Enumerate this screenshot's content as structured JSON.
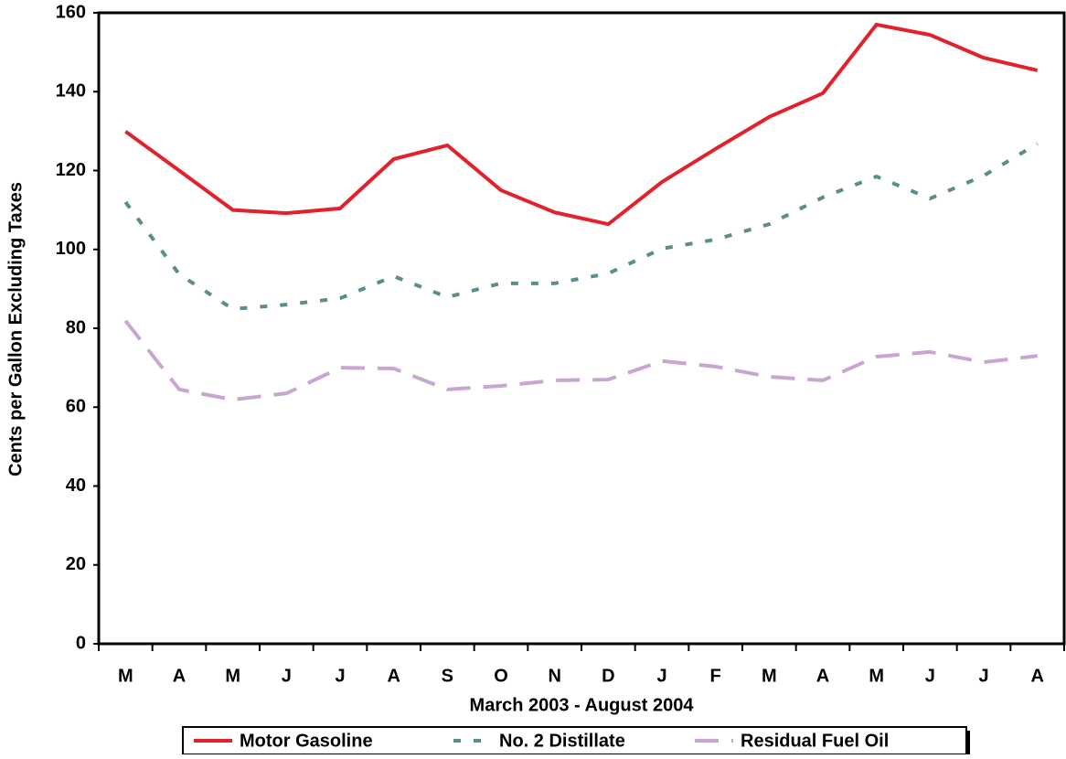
{
  "chart_data": {
    "type": "line",
    "y_label": "Cents per Gallon Excluding Taxes",
    "x_label": "March 2003 - August 2004",
    "categories": [
      "M",
      "A",
      "M",
      "J",
      "J",
      "A",
      "S",
      "O",
      "N",
      "D",
      "J",
      "F",
      "M",
      "A",
      "M",
      "J",
      "J",
      "A"
    ],
    "ylim": [
      0,
      160
    ],
    "yticks": [
      0,
      20,
      40,
      60,
      80,
      100,
      120,
      140,
      160
    ],
    "series": [
      {
        "name": "Motor Gasoline",
        "color": "#e3212b",
        "style": "solid",
        "values": [
          129.9,
          120,
          110,
          109.2,
          110.4,
          122.9,
          126.4,
          115,
          109.4,
          106.4,
          117.1,
          125.5,
          133.6,
          139.6,
          157,
          154.4,
          148.6,
          145.4
        ]
      },
      {
        "name": "No. 2 Distillate",
        "color": "#5a8e8c",
        "style": "dotted",
        "values": [
          112,
          93.7,
          84.9,
          86,
          87.6,
          93.2,
          87.9,
          91.4,
          91.4,
          93.9,
          100.2,
          102.5,
          106.4,
          113.2,
          118.5,
          112.9,
          118.7,
          126.8
        ]
      },
      {
        "name": "Residual Fuel Oil",
        "color": "#c9a6d2",
        "style": "dashed",
        "values": [
          81.9,
          64.5,
          61.9,
          63.5,
          70,
          69.8,
          64.5,
          65.4,
          66.8,
          67,
          71.7,
          70.3,
          67.7,
          66.8,
          72.8,
          74,
          71.4,
          73
        ]
      }
    ]
  }
}
